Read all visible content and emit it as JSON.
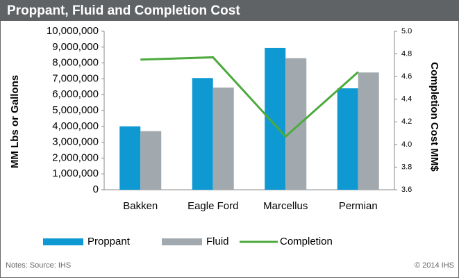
{
  "chart_data": {
    "type": "bar",
    "title": "Proppant, Fluid and Completion Cost",
    "categories": [
      "Bakken",
      "Eagle Ford",
      "Marcellus",
      "Permian"
    ],
    "series": [
      {
        "name": "Proppant",
        "color": "#0f99d3",
        "values": [
          4000000,
          7050000,
          8950000,
          6400000
        ]
      },
      {
        "name": "Fluid",
        "color": "#a2a9ae",
        "values": [
          3700000,
          6450000,
          8300000,
          7400000
        ]
      },
      {
        "name": "Completion",
        "color": "#4caa3d",
        "type": "line",
        "axis": "y2",
        "values": [
          4.75,
          4.77,
          4.07,
          4.64
        ]
      }
    ],
    "ylabel": "MM Lbs or Gallons",
    "y2label": "Completion Cost MM$",
    "ylim": [
      0,
      10000000
    ],
    "yticks": [
      0,
      {
        "value": 1000000,
        "label": "1,000,000"
      },
      {
        "value": 2000000,
        "label": "2,000,000"
      },
      {
        "value": 3000000,
        "label": "3,000,000"
      },
      {
        "value": 4000000,
        "label": "4,000,000"
      },
      {
        "value": 5000000,
        "label": "5,000,000"
      },
      {
        "value": 6000000,
        "label": "6,000,000"
      },
      {
        "value": 7000000,
        "label": "7,000,000"
      },
      {
        "value": 8000000,
        "label": "8,000,000"
      },
      {
        "value": 9000000,
        "label": "9,000,000"
      },
      {
        "value": 10000000,
        "label": "10,000,000"
      }
    ],
    "y2lim": [
      3.6,
      5.0
    ],
    "y2ticks": [
      3.6,
      3.8,
      {
        "value": 4.0,
        "label": "4.0"
      },
      4.2,
      4.4,
      4.6,
      4.8,
      {
        "value": 5.0,
        "label": "5.0"
      }
    ],
    "grid": false,
    "legend": "bottom",
    "notes": "Notes: Source: IHS",
    "copyright": "© 2014 IHS"
  }
}
